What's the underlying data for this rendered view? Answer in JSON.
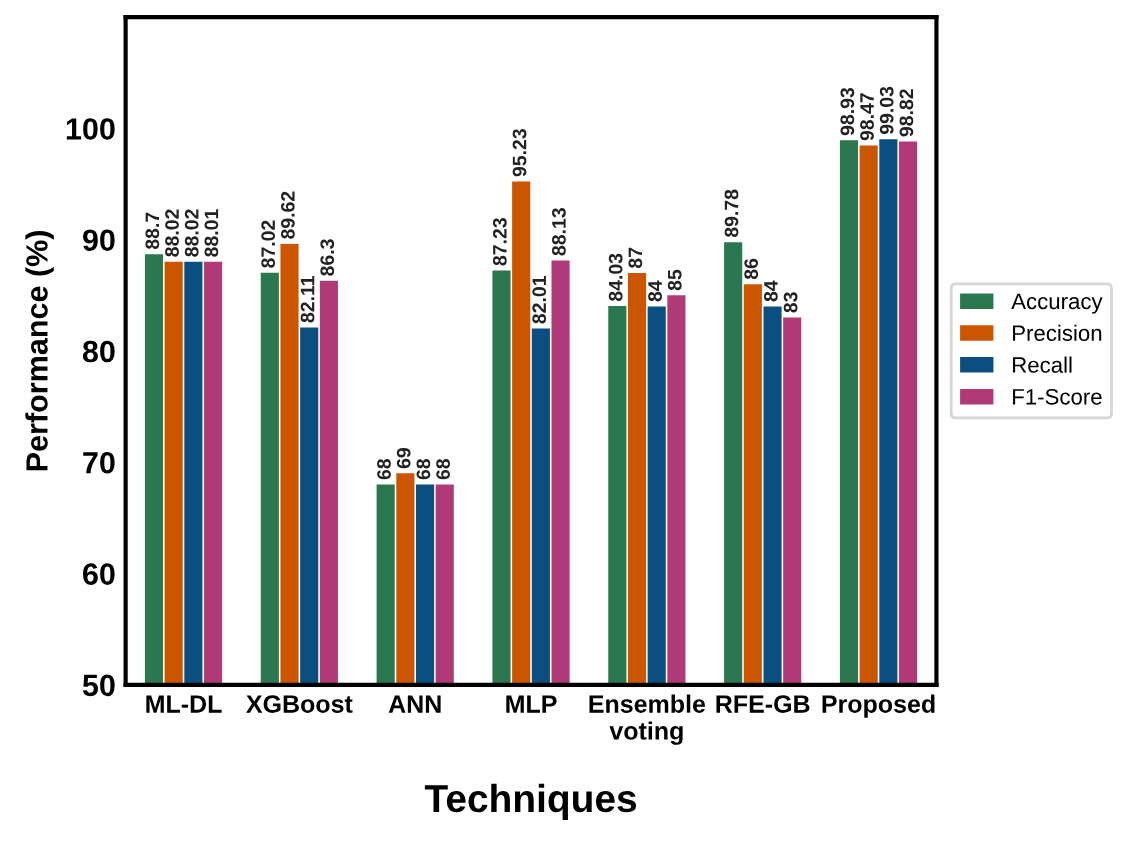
{
  "chart_data": {
    "type": "bar",
    "xlabel": "Techniques",
    "ylabel": "Performance (%)",
    "categories": [
      "ML-DL",
      "XGBoost",
      "ANN",
      "MLP",
      "Ensemble\nvoting",
      "RFE-GB",
      "Proposed"
    ],
    "series": [
      {
        "name": "Accuracy",
        "color": "#2a7750",
        "values": [
          88.7,
          87.02,
          68,
          87.23,
          84.03,
          89.78,
          98.93
        ]
      },
      {
        "name": "Precision",
        "color": "#cc5500",
        "values": [
          88.02,
          89.62,
          69,
          95.23,
          87,
          86,
          98.47
        ]
      },
      {
        "name": "Recall",
        "color": "#0a4f80",
        "values": [
          88.02,
          82.11,
          68,
          82.01,
          84,
          84,
          99.03
        ]
      },
      {
        "name": "F1-Score",
        "color": "#b03a78",
        "values": [
          88.01,
          86.3,
          68,
          88.13,
          85,
          83,
          98.82
        ]
      }
    ],
    "ylim": [
      50,
      110
    ],
    "yticks": [
      50,
      60,
      70,
      80,
      90,
      100
    ],
    "grid": false,
    "legend": "right",
    "data_labels": true
  }
}
